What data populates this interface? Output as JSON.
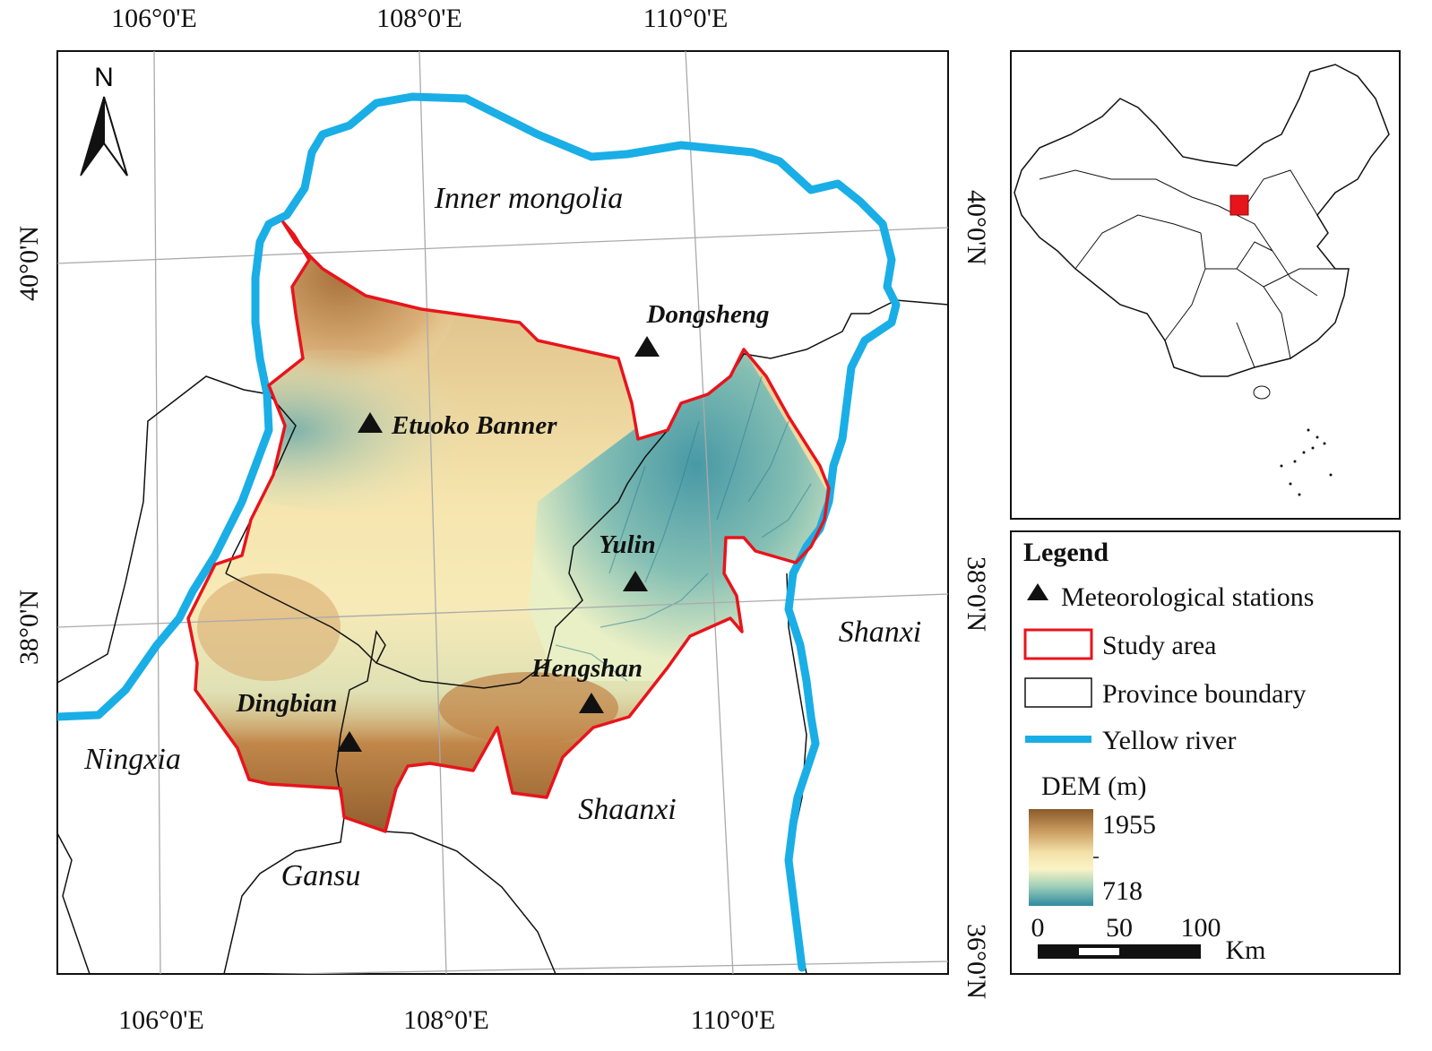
{
  "map": {
    "north_arrow_label": "N",
    "graticule": {
      "top_longitudes": [
        "106°0'E",
        "108°0'E",
        "110°0'E"
      ],
      "bottom_longitudes": [
        "106°0'E",
        "108°0'E",
        "110°0'E"
      ],
      "left_latitudes": [
        "40°0'N",
        "38°0'N"
      ],
      "right_latitudes": [
        "40°0'N",
        "38°0'N",
        "36°0'N"
      ]
    },
    "regions": [
      {
        "name": "Inner mongolia"
      },
      {
        "name": "Ningxia"
      },
      {
        "name": "Gansu"
      },
      {
        "name": "Shaanxi"
      },
      {
        "name": "Shanxi"
      }
    ],
    "stations": [
      {
        "name": "Dongsheng"
      },
      {
        "name": "Etuoko Banner"
      },
      {
        "name": "Yulin"
      },
      {
        "name": "Hengshan"
      },
      {
        "name": "Dingbian"
      }
    ],
    "colors": {
      "yellow_river": "#1aaee6",
      "study_area_outline": "#e8141c",
      "province_boundary": "#111111",
      "dem_high": "#8b5a2b",
      "dem_mid": "#fbf1bc",
      "dem_low": "#2e8aa0",
      "inset_study_area": "#e8141c"
    }
  },
  "legend": {
    "title": "Legend",
    "items": [
      {
        "symbol": "triangle-icon",
        "label": "Meteorological stations"
      },
      {
        "symbol": "red-rectangle",
        "label": "Study area"
      },
      {
        "symbol": "black-rectangle",
        "label": "Province boundary"
      },
      {
        "symbol": "blue-line",
        "label": "Yellow river"
      }
    ],
    "dem_title": "DEM (m)",
    "dem_max": "1955",
    "dem_min": "718",
    "scale_labels": [
      "0",
      "50",
      "100"
    ],
    "scale_unit": "Km"
  }
}
